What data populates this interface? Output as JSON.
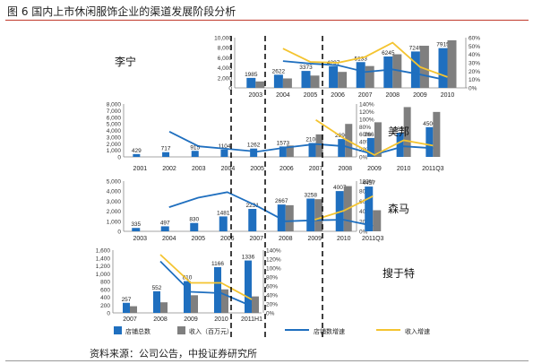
{
  "title": "图 6 国内上市休闲服饰企业的渠道发展阶段分析",
  "source": "资料来源：公司公告，中投证券研究所",
  "colors": {
    "stores": "#1f6fbf",
    "revenue": "#7f7f7f",
    "stores_growth": "#1f6fbf",
    "revenue_growth": "#f4c430",
    "divider": "#000000"
  },
  "chart_data": [
    {
      "type": "bar",
      "company": "李宁",
      "categories": [
        "2003",
        "2004",
        "2005",
        "2006",
        "2007",
        "2008",
        "2009",
        "2010"
      ],
      "series": [
        {
          "name": "店铺总数",
          "values": [
            1985,
            2622,
            3373,
            4297,
            5133,
            6245,
            7249,
            7915
          ],
          "labels": [
            "1985",
            "2622",
            "3373",
            "4297",
            "5133",
            "6245",
            "7249",
            "7915"
          ]
        },
        {
          "name": "收入（百万元）",
          "values": [
            1276,
            1878,
            2451,
            3180,
            4349,
            6690,
            8387,
            9479
          ]
        }
      ],
      "lines": [
        {
          "name": "店铺数增速",
          "values": [
            null,
            0.32,
            0.29,
            0.27,
            0.19,
            0.22,
            0.16,
            0.09
          ]
        },
        {
          "name": "收入增速",
          "values": [
            null,
            0.47,
            0.31,
            0.3,
            0.37,
            0.54,
            0.25,
            0.13
          ]
        }
      ],
      "ylim": [
        0,
        10000
      ],
      "yticks": [
        "10,000",
        "8,000",
        "6,000",
        "4,000",
        "2,000",
        "0"
      ],
      "y2lim": [
        0,
        0.6
      ],
      "y2ticks": [
        "60%",
        "50%",
        "40%",
        "30%",
        "20%",
        "10%",
        "0%"
      ]
    },
    {
      "type": "bar",
      "company": "美邦",
      "categories": [
        "2001",
        "2002",
        "2003",
        "2004",
        "2005",
        "2006",
        "2007",
        "2008",
        "2009",
        "2010",
        "2011Q3"
      ],
      "series": [
        {
          "name": "店铺总数",
          "values": [
            429,
            717,
            915,
            1104,
            1262,
            1573,
            2100,
            2696,
            2863,
            3659,
            4500
          ],
          "labels": [
            "429",
            "717",
            "915",
            "1104",
            "1262",
            "1573",
            "2100",
            "2696",
            "2863",
            "3659",
            "4500"
          ]
        },
        {
          "name": "收入（百万元）",
          "values": [
            null,
            null,
            null,
            null,
            null,
            1720,
            3405,
            4989,
            5237,
            7534,
            6800
          ]
        }
      ],
      "lines": [
        {
          "name": "店铺数增速",
          "values": [
            null,
            0.67,
            0.28,
            0.21,
            0.14,
            0.25,
            0.34,
            0.28,
            0.06,
            0.28,
            0.23
          ]
        },
        {
          "name": "收入增速",
          "values": [
            null,
            null,
            null,
            null,
            null,
            null,
            0.98,
            0.47,
            0.05,
            0.44,
            0.3
          ]
        }
      ],
      "ylim": [
        0,
        8000
      ],
      "yticks": [
        "8,000",
        "7,000",
        "6,000",
        "5,000",
        "4,000",
        "3,000",
        "2,000",
        "1,000",
        "0"
      ],
      "y2lim": [
        0,
        1.4
      ],
      "y2ticks": [
        "140%",
        "120%",
        "100%",
        "80%",
        "60%",
        "40%",
        "20%",
        "0%"
      ]
    },
    {
      "type": "bar",
      "company": "森马",
      "categories": [
        "2003",
        "2004",
        "2005",
        "2006",
        "2007",
        "2008",
        "2009",
        "2010",
        "2011Q3"
      ],
      "series": [
        {
          "name": "店铺总数",
          "values": [
            335,
            497,
            830,
            1481,
            2231,
            2667,
            3258,
            4007,
            4457
          ],
          "labels": [
            "335",
            "497",
            "830",
            "1481",
            "2231",
            "2667",
            "3258",
            "4007",
            "4457"
          ]
        },
        {
          "name": "收入（百万元）",
          "values": [
            null,
            null,
            null,
            null,
            null,
            2600,
            3200,
            4500,
            2100
          ]
        }
      ],
      "lines": [
        {
          "name": "店铺数增速",
          "values": [
            null,
            0.48,
            0.67,
            0.78,
            0.51,
            0.2,
            0.22,
            0.23,
            0.11
          ]
        },
        {
          "name": "收入增速",
          "values": [
            null,
            null,
            null,
            null,
            null,
            null,
            0.23,
            0.41,
            0.7
          ]
        }
      ],
      "ylim": [
        0,
        5000
      ],
      "yticks": [
        "5,000",
        "4,000",
        "3,000",
        "2,000",
        "1,000",
        "0"
      ],
      "y2lim": [
        0,
        1.0
      ],
      "y2ticks": [
        "100%",
        "80%",
        "60%",
        "40%",
        "20%",
        "0%"
      ]
    },
    {
      "type": "bar",
      "company": "搜于特",
      "categories": [
        "2007",
        "2008",
        "2009",
        "2010",
        "2011H1"
      ],
      "series": [
        {
          "name": "店铺总数",
          "values": [
            257,
            552,
            810,
            1166,
            1336
          ],
          "labels": [
            "257",
            "552",
            "810",
            "1166",
            "1336"
          ]
        },
        {
          "name": "收入（百万元）",
          "values": [
            170,
            270,
            450,
            600,
            420
          ]
        }
      ],
      "lines": [
        {
          "name": "店铺数增速",
          "values": [
            null,
            1.15,
            0.47,
            0.44,
            0.15
          ]
        },
        {
          "name": "收入增速",
          "values": [
            null,
            1.3,
            0.67,
            0.67,
            0.3
          ]
        }
      ],
      "ylim": [
        0,
        1600
      ],
      "yticks": [
        "1,600",
        "1,400",
        "1,200",
        "1,000",
        "800",
        "600",
        "400",
        "200",
        "0"
      ],
      "y2lim": [
        0,
        1.4
      ],
      "y2ticks": [
        "140%",
        "120%",
        "100%",
        "80%",
        "60%",
        "40%",
        "20%",
        "0%"
      ]
    }
  ],
  "legend": {
    "stores": "店铺总数",
    "revenue": "收入（百万元）",
    "stores_growth": "店铺数增速",
    "revenue_growth": "收入增速"
  }
}
